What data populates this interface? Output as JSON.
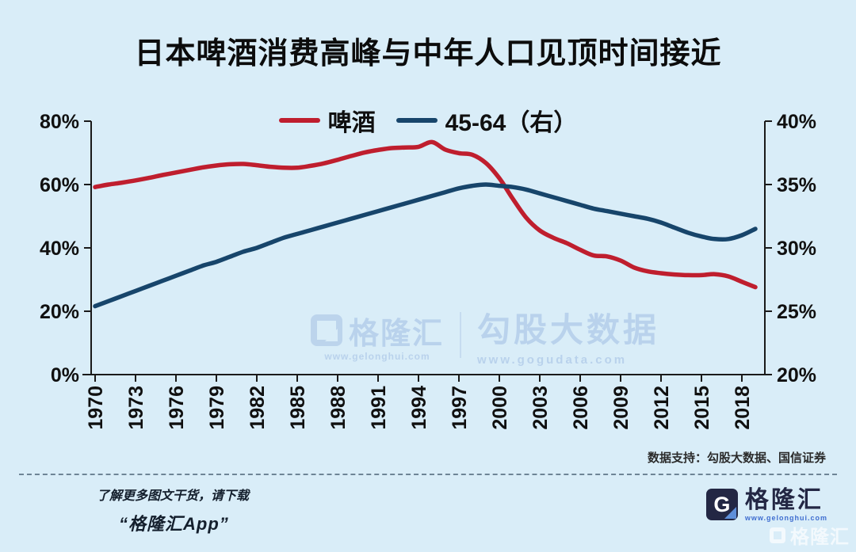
{
  "title": "日本啤酒消费高峰与中年人口见顶时间接近",
  "legend": [
    {
      "label": "啤酒",
      "color": "#bf1e2e"
    },
    {
      "label": "45-64（右）",
      "color": "#17456b"
    }
  ],
  "colors": {
    "background": "#d9edf8",
    "axis": "#1a1a1a",
    "beer_line": "#bf1e2e",
    "pop_line": "#17456b",
    "watermark": "#b9d2ec"
  },
  "chart_data": {
    "type": "line",
    "x_years": [
      1970,
      1971,
      1972,
      1973,
      1974,
      1975,
      1976,
      1977,
      1978,
      1979,
      1980,
      1981,
      1982,
      1983,
      1984,
      1985,
      1986,
      1987,
      1988,
      1989,
      1990,
      1991,
      1992,
      1993,
      1994,
      1995,
      1996,
      1997,
      1998,
      1999,
      2000,
      2001,
      2002,
      2003,
      2004,
      2005,
      2006,
      2007,
      2008,
      2009,
      2010,
      2011,
      2012,
      2013,
      2014,
      2015,
      2016,
      2017,
      2018,
      2019
    ],
    "x_tick_labels": [
      "1970",
      "1973",
      "1976",
      "1979",
      "1982",
      "1985",
      "1988",
      "1991",
      "1994",
      "1997",
      "2000",
      "2003",
      "2006",
      "2009",
      "2012",
      "2015",
      "2018"
    ],
    "series": [
      {
        "name": "啤酒",
        "axis": "left",
        "color": "#bf1e2e",
        "values": [
          59.2,
          60.0,
          60.6,
          61.3,
          62.1,
          63.0,
          63.8,
          64.6,
          65.4,
          66.0,
          66.4,
          66.5,
          66.1,
          65.6,
          65.3,
          65.3,
          65.9,
          66.7,
          67.8,
          69.0,
          70.1,
          70.9,
          71.5,
          71.7,
          71.9,
          73.4,
          71.0,
          69.9,
          69.4,
          66.8,
          62.0,
          55.5,
          49.5,
          45.5,
          43.2,
          41.5,
          39.4,
          37.6,
          37.3,
          36.0,
          33.8,
          32.6,
          32.0,
          31.6,
          31.4,
          31.4,
          31.7,
          31.0,
          29.3,
          27.6
        ]
      },
      {
        "name": "45-64（右）",
        "axis": "right",
        "color": "#17456b",
        "values": [
          25.4,
          25.8,
          26.2,
          26.6,
          27.0,
          27.4,
          27.8,
          28.2,
          28.6,
          28.9,
          29.3,
          29.7,
          30.0,
          30.4,
          30.8,
          31.1,
          31.4,
          31.7,
          32.0,
          32.3,
          32.6,
          32.9,
          33.2,
          33.5,
          33.8,
          34.1,
          34.4,
          34.7,
          34.9,
          35.0,
          34.9,
          34.8,
          34.6,
          34.3,
          34.0,
          33.7,
          33.4,
          33.1,
          32.9,
          32.7,
          32.5,
          32.3,
          32.0,
          31.6,
          31.2,
          30.9,
          30.7,
          30.7,
          31.0,
          31.5
        ]
      }
    ],
    "left_axis": {
      "min": 0,
      "max": 80,
      "tick_labels": [
        "0%",
        "20%",
        "40%",
        "60%",
        "80%"
      ]
    },
    "right_axis": {
      "min": 20,
      "max": 40,
      "tick_labels": [
        "20%",
        "25%",
        "30%",
        "35%",
        "40%"
      ]
    },
    "grid": false,
    "legend_position": "top-center"
  },
  "watermark_center": {
    "brand": "格隆汇",
    "brand_url": "www.gelonghui.com",
    "product": "勾股大数据",
    "product_url": "www.gogudata.com"
  },
  "source_note": "数据支持：勾股大数据、国信证券",
  "footer": {
    "promo_line1": "了解更多图文干货，请下载",
    "promo_line2": "“格隆汇App”",
    "g_letter": "G",
    "brand": "格隆汇",
    "brand_url": "www.gelonghui.com"
  },
  "watermark_corner": {
    "brand": "格隆汇"
  }
}
